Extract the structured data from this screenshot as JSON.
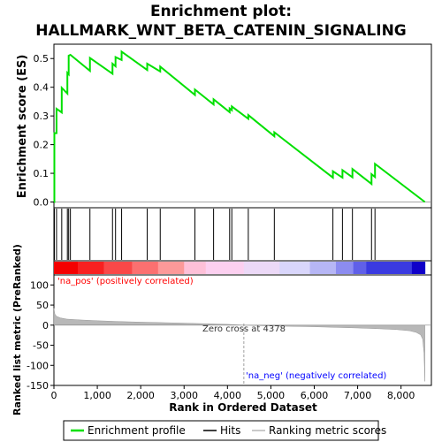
{
  "chart_data": {
    "type": "line",
    "title_line1": "Enrichment plot:",
    "title_line2": "HALLMARK_WNT_BETA_CATENIN_SIGNALING",
    "ylabel_top": "Enrichment score (ES)",
    "ylabel_bottom": "Ranked list metric (PreRanked)",
    "xlabel": "Rank in Ordered Dataset",
    "x_range": [
      0,
      8700
    ],
    "es_range": [
      -0.02,
      0.55
    ],
    "metric_range": [
      -150,
      125
    ],
    "x_ticks": [
      0,
      1000,
      2000,
      3000,
      4000,
      5000,
      6000,
      7000,
      8000
    ],
    "x_tick_labels": [
      "0",
      "1,000",
      "2,000",
      "3,000",
      "4,000",
      "5,000",
      "6,000",
      "7,000",
      "8,000"
    ],
    "es_ticks": [
      0.0,
      0.1,
      0.2,
      0.3,
      0.4,
      0.5
    ],
    "es_tick_labels": [
      "0.0",
      "0.1",
      "0.2",
      "0.3",
      "0.4",
      "0.5"
    ],
    "metric_ticks": [
      100,
      50,
      0,
      -50,
      -100,
      -150
    ],
    "metric_tick_labels": [
      "100",
      "50",
      "0",
      "-50",
      "-100",
      "-150"
    ],
    "hits": [
      10,
      60,
      180,
      310,
      340,
      380,
      830,
      1350,
      1420,
      1560,
      2150,
      2450,
      3250,
      3680,
      4050,
      4100,
      4480,
      5080,
      6430,
      6650,
      6880,
      7320,
      7400
    ],
    "es_profile": {
      "x": [
        0,
        10,
        10,
        60,
        60,
        180,
        180,
        310,
        310,
        340,
        340,
        380,
        380,
        830,
        830,
        1350,
        1350,
        1420,
        1420,
        1560,
        1560,
        2150,
        2150,
        2450,
        2450,
        3250,
        3250,
        3680,
        3680,
        4050,
        4050,
        4100,
        4100,
        4480,
        4480,
        5080,
        5080,
        6430,
        6430,
        6650,
        6650,
        6880,
        6880,
        7320,
        7320,
        7400,
        7400,
        8550
      ],
      "y": [
        0.0,
        0.0,
        0.24,
        0.24,
        0.325,
        0.312,
        0.398,
        0.378,
        0.45,
        0.445,
        0.51,
        0.513,
        0.513,
        0.457,
        0.502,
        0.447,
        0.482,
        0.473,
        0.505,
        0.495,
        0.524,
        0.46,
        0.482,
        0.455,
        0.472,
        0.373,
        0.392,
        0.34,
        0.358,
        0.313,
        0.326,
        0.32,
        0.333,
        0.29,
        0.303,
        0.229,
        0.243,
        0.085,
        0.107,
        0.085,
        0.111,
        0.086,
        0.115,
        0.063,
        0.097,
        0.087,
        0.133,
        0.0
      ]
    },
    "zero_cross": 4378,
    "zero_cross_label": "Zero cross at 4378",
    "pos_label": "'na_pos' (positively correlated)",
    "neg_label": "'na_neg' (negatively correlated)",
    "metric_curve": {
      "x": [
        0,
        20,
        60,
        150,
        300,
        600,
        1000,
        1500,
        2000,
        3000,
        4000,
        4378,
        5000,
        6000,
        6500,
        7000,
        7500,
        7900,
        8200,
        8350,
        8450,
        8500,
        8530,
        8550
      ],
      "y": [
        42,
        28,
        22,
        18,
        15,
        13,
        11,
        9,
        7.5,
        5,
        2,
        0,
        -2,
        -4,
        -5.5,
        -7,
        -9,
        -11,
        -14,
        -18,
        -24,
        -35,
        -70,
        -140
      ]
    },
    "heat_colors": [
      "#f40000",
      "#f82020",
      "#f94848",
      "#fb7070",
      "#fc9999",
      "#fec0d8",
      "#fcd0f0",
      "#ecd9f7",
      "#d9d6fb",
      "#b6b6f5",
      "#8c8cf0",
      "#6060e8",
      "#3a3ae0",
      "#1000c8"
    ],
    "colors": {
      "es_line": "#00e000",
      "hits": "#000000",
      "metric_fill": "#b8b8b8",
      "pos_text": "#ff0000",
      "neg_text": "#0000ff"
    },
    "legend": {
      "es": "Enrichment profile",
      "hits": "Hits",
      "metric": "Ranking metric scores"
    }
  }
}
